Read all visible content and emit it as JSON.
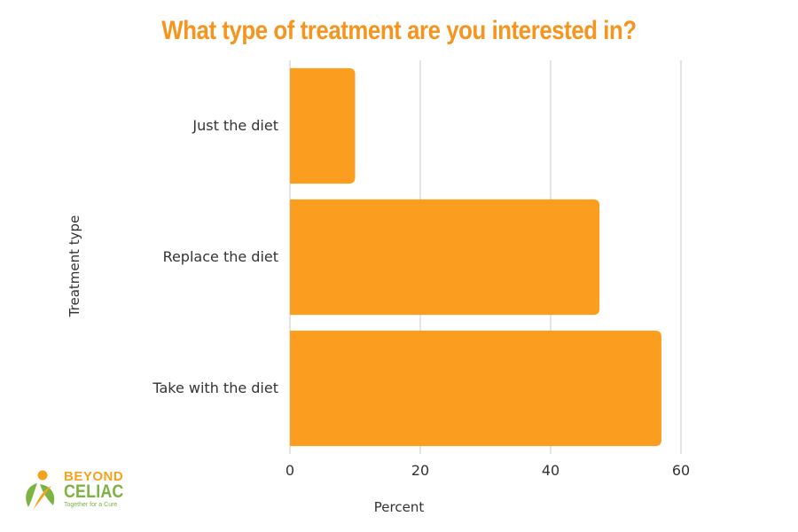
{
  "colors": {
    "title": "#f7941d",
    "bar": "#fb9e1f",
    "gridline": "#c8c8c8",
    "axis_text": "#333333",
    "logo_orange": "#f7a21b",
    "logo_green": "#7cb342"
  },
  "logo": {
    "brand_line1": "BEYOND",
    "brand_line2": "CELIAC",
    "tagline": "Together for a Cure",
    "icon": "leaf-person-icon"
  },
  "chart_data": {
    "type": "bar",
    "orientation": "horizontal",
    "title": "What type of treatment are you interested in?",
    "xlabel": "Percent",
    "ylabel": "Treatment type",
    "categories": [
      "Just the diet",
      "Replace the diet",
      "Take with the diet"
    ],
    "values": [
      10,
      47.5,
      57
    ],
    "xlim": [
      0,
      60
    ],
    "xticks": [
      0,
      20,
      40,
      60
    ],
    "grid": true,
    "legend": "none"
  }
}
